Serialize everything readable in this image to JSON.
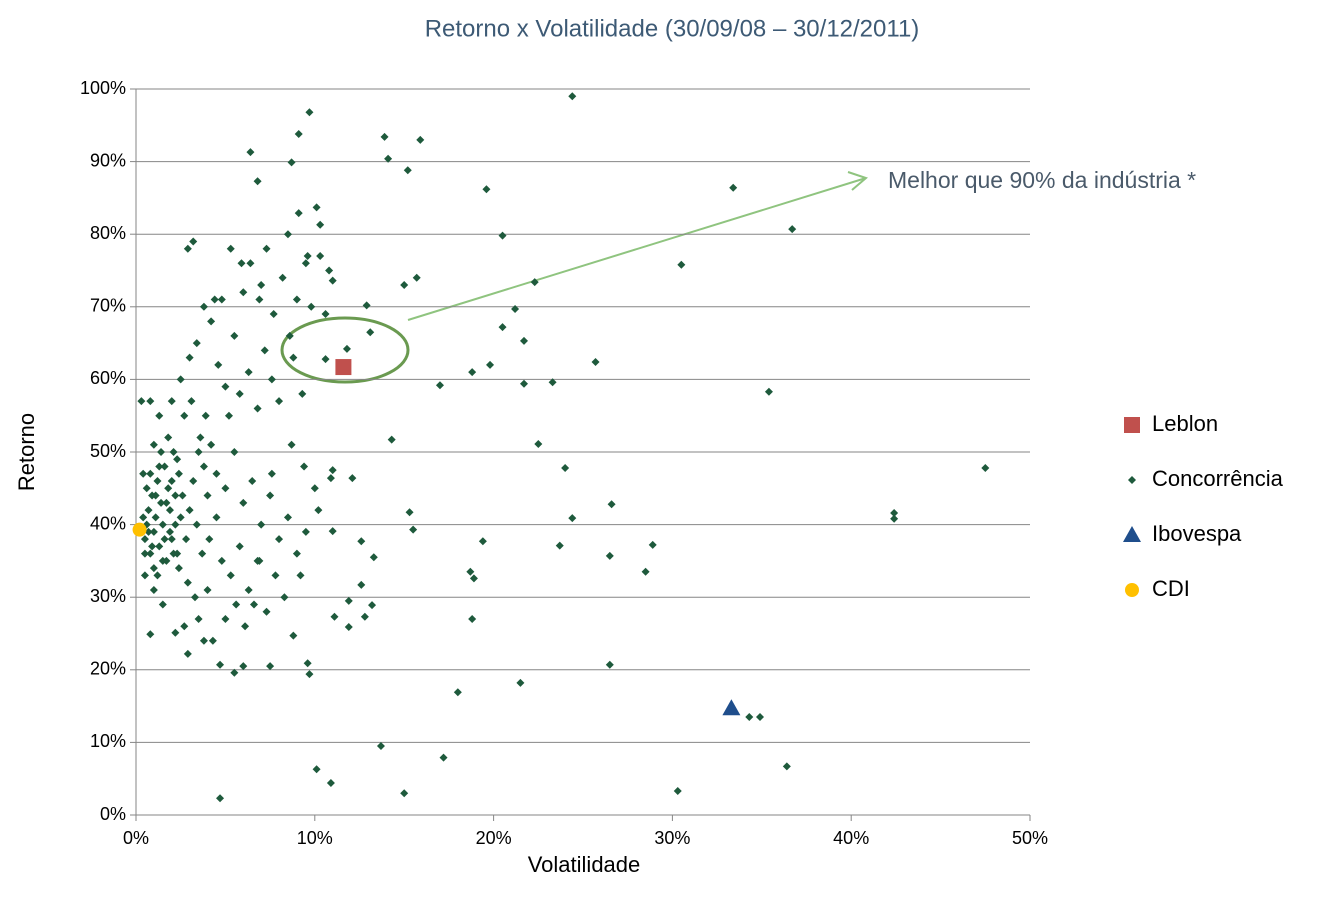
{
  "chart_data": {
    "type": "scatter",
    "title": "Retorno x Volatilidade (30/09/08 – 30/12/2011)",
    "x_label": "Volatilidade",
    "y_label": "Retorno",
    "annotation": "Melhor que  90% da indústria *",
    "xlim": [
      0,
      50
    ],
    "ylim": [
      0,
      100
    ],
    "xticks": [
      {
        "value": 0,
        "label": "0%"
      },
      {
        "value": 10,
        "label": "10%"
      },
      {
        "value": 20,
        "label": "20%"
      },
      {
        "value": 30,
        "label": "30%"
      },
      {
        "value": 40,
        "label": "40%"
      },
      {
        "value": 50,
        "label": "50%"
      }
    ],
    "yticks": [
      {
        "value": 0,
        "label": "0%"
      },
      {
        "value": 10,
        "label": "10%"
      },
      {
        "value": 20,
        "label": "20%"
      },
      {
        "value": 30,
        "label": "30%"
      },
      {
        "value": 40,
        "label": "40%"
      },
      {
        "value": 50,
        "label": "50%"
      },
      {
        "value": 60,
        "label": "60%"
      },
      {
        "value": 70,
        "label": "70%"
      },
      {
        "value": 80,
        "label": "80%"
      },
      {
        "value": 90,
        "label": "90%"
      },
      {
        "value": 100,
        "label": "100%"
      }
    ],
    "grid": true,
    "legend": "right",
    "series": [
      {
        "name": "Leblon",
        "color": "#c0504d",
        "marker": "square",
        "x": [
          11.6
        ],
        "values": [
          61.7
        ]
      },
      {
        "name": "Concorrência",
        "color": "#1e5a3c",
        "marker": "diamond",
        "x": [
          24.4,
          9.7,
          9.1,
          13.9,
          15.9,
          6.4,
          14.1,
          8.7,
          15.2,
          6.8,
          19.6,
          33.4,
          10.1,
          9.1,
          36.7,
          20.5,
          30.5,
          15.7,
          22.3,
          15.0,
          21.2,
          20.5,
          21.7,
          25.7,
          19.8,
          18.8,
          23.3,
          21.7,
          17.0,
          35.4,
          14.3,
          22.5,
          24.0,
          47.5,
          42.4,
          42.4,
          24.4,
          26.6,
          15.3,
          15.5,
          19.4,
          23.7,
          28.9,
          26.5,
          18.7,
          18.9,
          28.5,
          18.8,
          26.5,
          18.0,
          21.5,
          34.3,
          34.9,
          13.7,
          17.2,
          10.1,
          10.9,
          15.0,
          30.3,
          36.4,
          4.7,
          9.6,
          9.7,
          6.0,
          7.5,
          5.5,
          4.7,
          2.9,
          2.2,
          0.8,
          8.8,
          11.9,
          11.1,
          12.8,
          13.2,
          12.6,
          11.9,
          13.3,
          12.6,
          11.0,
          11.0,
          12.1,
          10.9,
          13.1,
          12.9,
          11.8,
          10.6,
          11.0,
          10.3,
          0.5,
          0.6,
          0.7,
          0.8,
          0.9,
          1.0,
          1.1,
          1.2,
          1.3,
          1.4,
          1.5,
          1.6,
          1.7,
          1.8,
          1.9,
          2.0,
          2.1,
          2.2,
          2.3,
          2.4,
          2.5,
          0.6,
          0.8,
          1.0,
          1.2,
          1.4,
          1.6,
          1.8,
          2.0,
          2.2,
          2.4,
          0.4,
          0.5,
          0.7,
          0.9,
          1.1,
          1.3,
          1.5,
          1.7,
          1.9,
          2.1,
          2.3,
          2.6,
          2.8,
          3.0,
          3.2,
          3.4,
          3.6,
          3.8,
          4.0,
          2.7,
          3.1,
          3.5,
          3.9,
          4.2,
          2.9,
          3.3,
          3.7,
          4.1,
          4.5,
          2.0,
          2.5,
          3.0,
          3.4,
          3.8,
          4.2,
          4.6,
          5.0,
          5.5,
          6.0,
          6.4,
          6.9,
          7.3,
          7.7,
          8.2,
          8.6,
          9.0,
          9.5,
          9.8,
          5.2,
          5.8,
          6.3,
          6.8,
          7.2,
          7.6,
          8.0,
          8.8,
          9.3,
          4.8,
          5.3,
          2.9,
          3.2,
          4.4,
          5.9,
          7.0,
          8.5,
          9.6,
          10.3,
          10.8,
          10.6,
          4.5,
          5.0,
          5.5,
          6.0,
          6.5,
          7.0,
          7.5,
          8.0,
          8.5,
          9.0,
          9.5,
          10.0,
          4.8,
          5.3,
          5.8,
          6.3,
          6.8,
          7.3,
          7.8,
          8.3,
          9.2,
          5.0,
          6.1,
          6.6,
          4.0,
          3.5,
          2.7,
          1.5,
          1.0,
          0.5,
          0.3,
          0.8,
          1.3,
          1.0,
          0.4,
          4.3,
          3.8,
          5.6,
          6.9,
          7.6,
          8.7,
          9.4,
          10.2
        ],
        "values": [
          99.0,
          96.8,
          93.8,
          93.4,
          93.0,
          91.3,
          90.4,
          89.9,
          88.8,
          87.3,
          86.2,
          86.4,
          83.7,
          82.9,
          80.7,
          79.8,
          75.8,
          74.0,
          73.4,
          73.0,
          69.7,
          67.2,
          65.3,
          62.4,
          62.0,
          61.0,
          59.6,
          59.4,
          59.2,
          58.3,
          51.7,
          51.1,
          47.8,
          47.8,
          41.6,
          40.8,
          40.9,
          42.8,
          41.7,
          39.3,
          37.7,
          37.1,
          37.2,
          35.7,
          33.5,
          32.6,
          33.5,
          27.0,
          20.7,
          16.9,
          18.2,
          13.5,
          13.5,
          9.5,
          7.9,
          6.3,
          4.4,
          3.0,
          3.3,
          6.7,
          2.3,
          20.9,
          19.4,
          20.5,
          20.5,
          19.6,
          20.7,
          22.2,
          25.1,
          24.9,
          24.7,
          25.9,
          27.3,
          27.3,
          28.9,
          31.7,
          29.5,
          35.5,
          37.7,
          39.1,
          47.5,
          46.4,
          46.4,
          66.5,
          70.2,
          64.2,
          62.8,
          73.6,
          81.3,
          38,
          40,
          42,
          36,
          44,
          39,
          41,
          46,
          37,
          43,
          40,
          48,
          35,
          45,
          42,
          38,
          50,
          44,
          36,
          47,
          41,
          45,
          47,
          34,
          33,
          50,
          38,
          52,
          46,
          40,
          34,
          41,
          36,
          39,
          37,
          44,
          48,
          35,
          43,
          39,
          36,
          49,
          44,
          38,
          42,
          46,
          40,
          52,
          48,
          44,
          55,
          57,
          50,
          55,
          51,
          32,
          30,
          36,
          38,
          41,
          57,
          60,
          63,
          65,
          70,
          68,
          62,
          59,
          66,
          72,
          76,
          71,
          78,
          69,
          74,
          66,
          71,
          76,
          70,
          55,
          58,
          61,
          56,
          64,
          60,
          57,
          63,
          58,
          71,
          78,
          78,
          79,
          71,
          76,
          73,
          80,
          77,
          77,
          75,
          69,
          47,
          45,
          50,
          43,
          46,
          40,
          44,
          38,
          41,
          36,
          39,
          45,
          35,
          33,
          37,
          31,
          35,
          28,
          33,
          30,
          33,
          27,
          26,
          29,
          31,
          27,
          26,
          29,
          31,
          33,
          57,
          57,
          55,
          51,
          47,
          24,
          24,
          29,
          35,
          47,
          51,
          48,
          42
        ]
      },
      {
        "name": "Ibovespa",
        "color": "#1f4e8c",
        "marker": "triangle",
        "x": [
          33.3
        ],
        "values": [
          14.7
        ]
      },
      {
        "name": "CDI",
        "color": "#ffc000",
        "marker": "circle",
        "x": [
          0.2
        ],
        "values": [
          39.3
        ]
      }
    ]
  }
}
